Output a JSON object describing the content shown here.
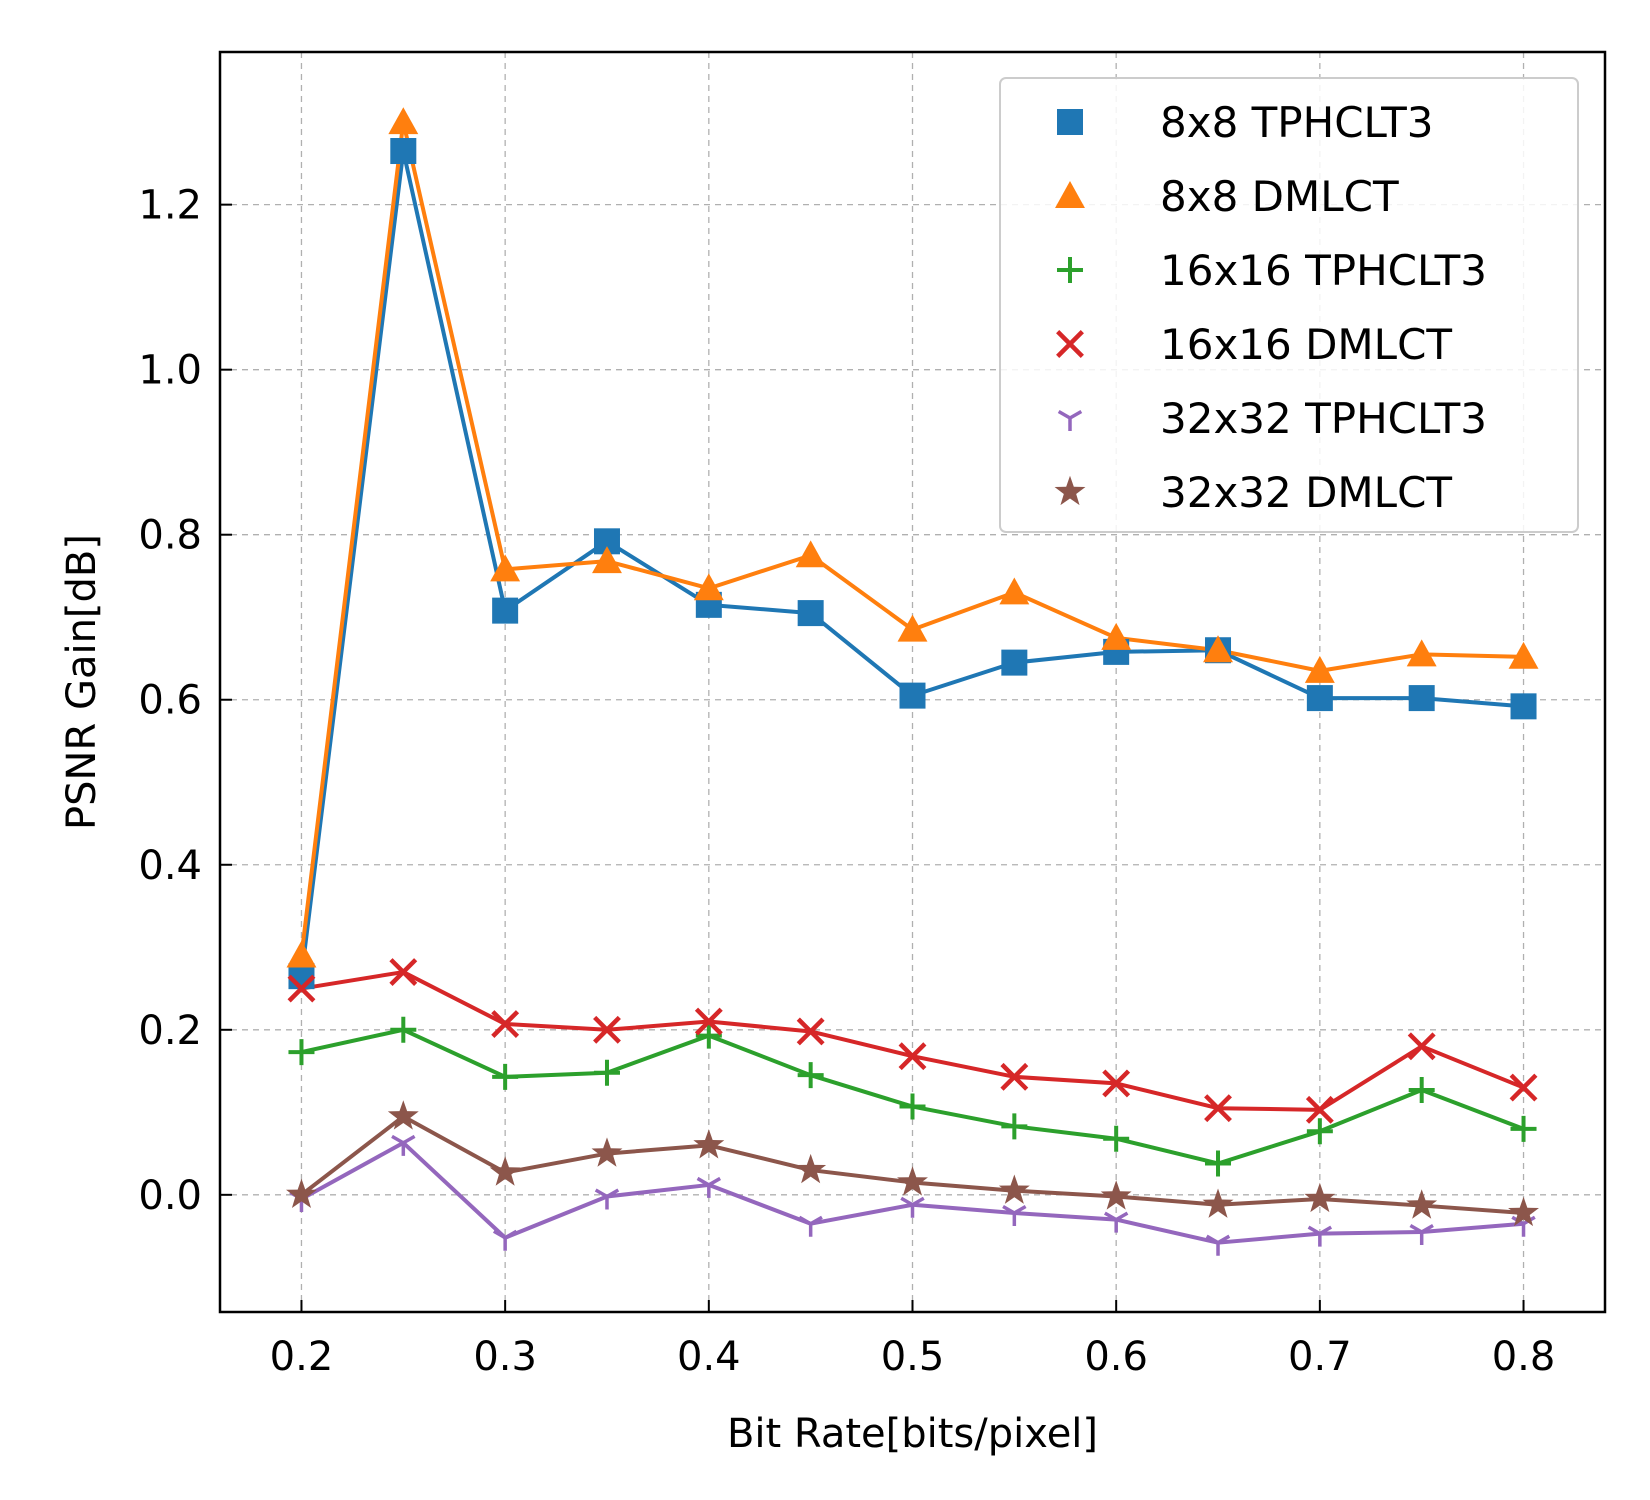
{
  "chart_data": {
    "type": "line",
    "title": "",
    "xlabel": "Bit Rate[bits/pixel]",
    "ylabel": "PSNR Gain[dB]",
    "xlim": [
      0.16,
      0.84
    ],
    "ylim": [
      -0.142,
      1.385
    ],
    "grid": true,
    "legend_position": "top-right",
    "xticks": [
      {
        "value": 0.2,
        "label": "0.2"
      },
      {
        "value": 0.3,
        "label": "0.3"
      },
      {
        "value": 0.4,
        "label": "0.4"
      },
      {
        "value": 0.5,
        "label": "0.5"
      },
      {
        "value": 0.6,
        "label": "0.6"
      },
      {
        "value": 0.7,
        "label": "0.7"
      },
      {
        "value": 0.8,
        "label": "0.8"
      }
    ],
    "yticks": [
      {
        "value": 0.0,
        "label": "0.0"
      },
      {
        "value": 0.2,
        "label": "0.2"
      },
      {
        "value": 0.4,
        "label": "0.4"
      },
      {
        "value": 0.6,
        "label": "0.6"
      },
      {
        "value": 0.8,
        "label": "0.8"
      },
      {
        "value": 1.0,
        "label": "1.0"
      },
      {
        "value": 1.2,
        "label": "1.2"
      }
    ],
    "x": [
      0.2,
      0.25,
      0.3,
      0.35,
      0.4,
      0.45,
      0.5,
      0.55,
      0.6,
      0.65,
      0.7,
      0.75,
      0.8
    ],
    "series": [
      {
        "name": "8x8 TPHCLT3",
        "color": "#1f77b4",
        "marker": "square",
        "values": [
          0.265,
          1.265,
          0.708,
          0.792,
          0.715,
          0.705,
          0.605,
          0.645,
          0.658,
          0.66,
          0.602,
          0.602,
          0.592
        ]
      },
      {
        "name": "8x8 DMLCT",
        "color": "#ff7f0e",
        "marker": "triangle",
        "values": [
          0.29,
          1.3,
          0.758,
          0.768,
          0.735,
          0.775,
          0.685,
          0.73,
          0.675,
          0.66,
          0.635,
          0.655,
          0.652
        ]
      },
      {
        "name": "16x16 TPHCLT3",
        "color": "#2ca02c",
        "marker": "plus",
        "values": [
          0.173,
          0.2,
          0.143,
          0.148,
          0.193,
          0.145,
          0.107,
          0.083,
          0.068,
          0.038,
          0.077,
          0.127,
          0.08
        ]
      },
      {
        "name": "16x16 DMLCT",
        "color": "#d62728",
        "marker": "x",
        "values": [
          0.25,
          0.27,
          0.207,
          0.2,
          0.21,
          0.198,
          0.168,
          0.143,
          0.135,
          0.105,
          0.103,
          0.18,
          0.13
        ]
      },
      {
        "name": "32x32 TPHCLT3",
        "color": "#9467bd",
        "marker": "tri_down",
        "values": [
          -0.005,
          0.063,
          -0.052,
          -0.002,
          0.012,
          -0.035,
          -0.012,
          -0.022,
          -0.03,
          -0.058,
          -0.047,
          -0.045,
          -0.035
        ]
      },
      {
        "name": "32x32 DMLCT",
        "color": "#8c564b",
        "marker": "star",
        "values": [
          0.0,
          0.095,
          0.027,
          0.05,
          0.06,
          0.03,
          0.015,
          0.005,
          -0.002,
          -0.012,
          -0.005,
          -0.013,
          -0.022
        ]
      }
    ]
  }
}
